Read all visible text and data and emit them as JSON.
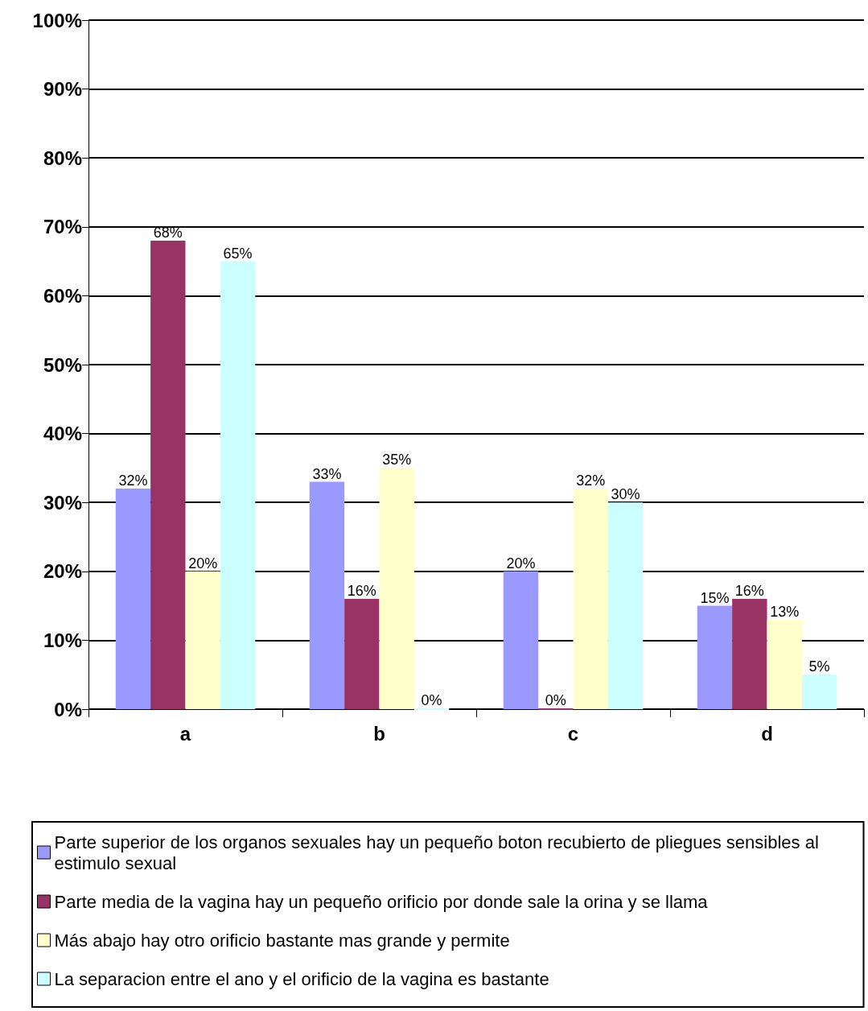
{
  "chart_data": {
    "type": "bar",
    "categories": [
      "a",
      "b",
      "c",
      "d"
    ],
    "series": [
      {
        "name": "Parte superior de los organos sexuales hay un pequeño boton recubierto de pliegues sensibles al estimulo sexual",
        "color": "#9999ff",
        "values": [
          32,
          33,
          20,
          15
        ],
        "value_labels": [
          "32%",
          "33%",
          "20%",
          "15%"
        ]
      },
      {
        "name": "Parte media de la vagina hay un pequeño orificio por donde sale la orina y se llama",
        "color": "#993366",
        "values": [
          68,
          16,
          0,
          16
        ],
        "value_labels": [
          "68%",
          "16%",
          "0%",
          "16%"
        ]
      },
      {
        "name": "Más abajo hay otro orificio bastante mas grande y permite",
        "color": "#ffffcc",
        "values": [
          20,
          35,
          32,
          13
        ],
        "value_labels": [
          "20%",
          "35%",
          "32%",
          "13%"
        ]
      },
      {
        "name": "La separacion entre el ano y el orificio de la vagina es bastante",
        "color": "#ccffff",
        "values": [
          65,
          0,
          30,
          5
        ],
        "value_labels": [
          "65%",
          "0%",
          "30%",
          "5%"
        ]
      }
    ],
    "ylim": [
      0,
      100
    ],
    "yticks": [
      {
        "value": 0,
        "label": "0%"
      },
      {
        "value": 10,
        "label": "10%"
      },
      {
        "value": 20,
        "label": "20%"
      },
      {
        "value": 30,
        "label": "30%"
      },
      {
        "value": 40,
        "label": "40%"
      },
      {
        "value": 50,
        "label": "50%"
      },
      {
        "value": 60,
        "label": "60%"
      },
      {
        "value": 70,
        "label": "70%"
      },
      {
        "value": 80,
        "label": "80%"
      },
      {
        "value": 90,
        "label": "90%"
      },
      {
        "value": 100,
        "label": "100%"
      }
    ],
    "grid": "y",
    "legend": "bottom"
  }
}
